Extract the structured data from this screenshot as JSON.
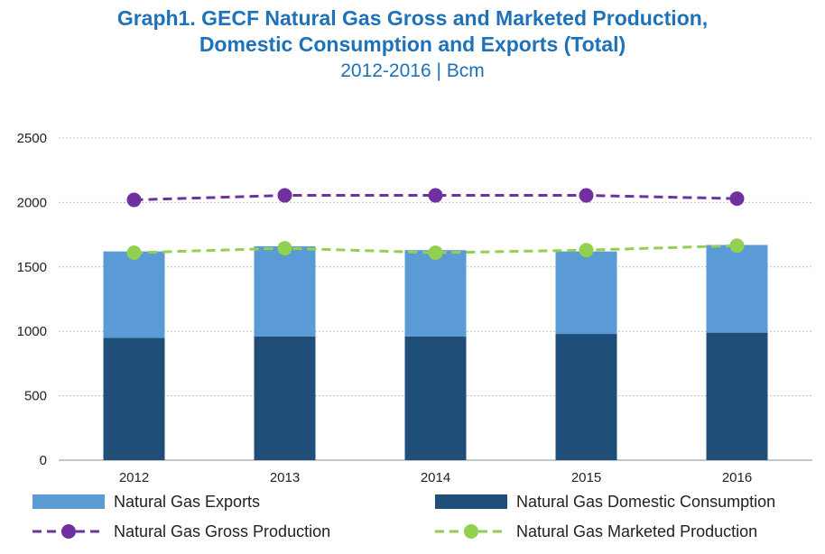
{
  "title": {
    "line1": "Graph1. GECF Natural Gas Gross and Marketed Production,",
    "line2": "Domestic Consumption and Exports (Total)",
    "subtitle": "2012-2016 | Bcm"
  },
  "colors": {
    "title": "#1f72b8",
    "exports": "#5b9bd5",
    "domestic": "#1f4e79",
    "gross": "#7030a0",
    "marketed": "#92d050",
    "grid": "#bfbfbf"
  },
  "chart_data": {
    "type": "bar",
    "stacked": true,
    "title": "Graph1. GECF Natural Gas Gross and Marketed Production, Domestic Consumption and Exports (Total)",
    "subtitle": "2012-2016 | Bcm",
    "categories": [
      "2012",
      "2013",
      "2014",
      "2015",
      "2016"
    ],
    "ylim": [
      0,
      2500
    ],
    "yticks": [
      0,
      500,
      1000,
      1500,
      2000,
      2500
    ],
    "grid": true,
    "legend_position": "bottom",
    "series": [
      {
        "name": "Natural Gas Domestic Consumption",
        "kind": "bar",
        "values": [
          950,
          960,
          960,
          980,
          990
        ]
      },
      {
        "name": "Natural Gas Exports",
        "kind": "bar",
        "values": [
          670,
          700,
          670,
          640,
          680
        ]
      },
      {
        "name": "Natural Gas Gross Production",
        "kind": "line",
        "values": [
          2020,
          2055,
          2055,
          2055,
          2030
        ]
      },
      {
        "name": "Natural Gas Marketed Production",
        "kind": "line",
        "values": [
          1610,
          1645,
          1610,
          1630,
          1665
        ]
      }
    ]
  },
  "legend": [
    {
      "label": "Natural Gas Exports",
      "type": "bar",
      "series": "exports"
    },
    {
      "label": "Natural Gas Domestic Consumption",
      "type": "bar",
      "series": "domestic"
    },
    {
      "label": "Natural Gas Gross Production",
      "type": "line",
      "series": "gross"
    },
    {
      "label": "Natural Gas Marketed Production",
      "type": "line",
      "series": "marketed"
    }
  ]
}
